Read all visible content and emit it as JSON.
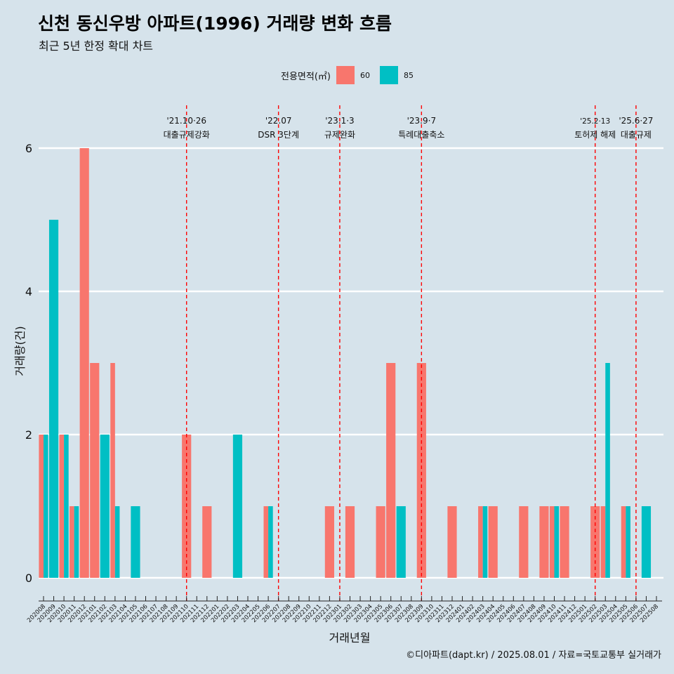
{
  "chart_data": {
    "type": "bar",
    "title": "신천 동신우방 아파트(1996) 거래량 변화 흐름",
    "subtitle": "최근 5년 한정 확대 차트",
    "xlabel": "거래년월",
    "ylabel": "거래량(건)",
    "ylim": [
      0,
      6
    ],
    "y_ticks": [
      0,
      2,
      4,
      6
    ],
    "grid": true,
    "legend": {
      "title": "전용면적(㎡)",
      "placement": "top"
    },
    "categories": [
      "202008",
      "202009",
      "202010",
      "202011",
      "202012",
      "202101",
      "202102",
      "202103",
      "202104",
      "202105",
      "202106",
      "202107",
      "202108",
      "202109",
      "202110",
      "202111",
      "202112",
      "202201",
      "202202",
      "202203",
      "202204",
      "202205",
      "202206",
      "202207",
      "202208",
      "202209",
      "202210",
      "202211",
      "202212",
      "202301",
      "202302",
      "202303",
      "202304",
      "202305",
      "202306",
      "202307",
      "202308",
      "202309",
      "202310",
      "202311",
      "202312",
      "202401",
      "202402",
      "202403",
      "202404",
      "202405",
      "202406",
      "202407",
      "202408",
      "202409",
      "202410",
      "202411",
      "202412",
      "202501",
      "202502",
      "202503",
      "202504",
      "202505",
      "202506",
      "202507",
      "202508"
    ],
    "series": [
      {
        "name": "60",
        "color": "#f8766d",
        "values": [
          2,
          0,
          2,
          1,
          6,
          3,
          0,
          3,
          0,
          0,
          0,
          0,
          0,
          0,
          2,
          0,
          1,
          0,
          0,
          0,
          0,
          0,
          1,
          0,
          0,
          0,
          0,
          0,
          1,
          0,
          1,
          0,
          0,
          1,
          3,
          0,
          0,
          3,
          0,
          0,
          1,
          0,
          0,
          1,
          1,
          0,
          0,
          1,
          0,
          1,
          1,
          1,
          0,
          0,
          1,
          1,
          0,
          1,
          0,
          0,
          0
        ]
      },
      {
        "name": "85",
        "color": "#00bfc4",
        "values": [
          2,
          5,
          2,
          1,
          0,
          0,
          2,
          1,
          0,
          1,
          0,
          0,
          0,
          0,
          0,
          0,
          0,
          0,
          0,
          2,
          0,
          0,
          1,
          0,
          0,
          0,
          0,
          0,
          0,
          0,
          0,
          0,
          0,
          0,
          0,
          1,
          0,
          0,
          0,
          0,
          0,
          0,
          0,
          1,
          0,
          0,
          0,
          0,
          0,
          0,
          1,
          0,
          0,
          0,
          0,
          3,
          0,
          1,
          0,
          1,
          0
        ]
      }
    ],
    "annotations": [
      {
        "date": "'21.10·26",
        "label": "대출규제강화",
        "category": "202110"
      },
      {
        "date": "'22.07",
        "label": "DSR 3단계",
        "category": "202207"
      },
      {
        "date": "'23.1·3",
        "label": "규제완화",
        "category": "202301"
      },
      {
        "date": "'23.9·7",
        "label": "특례대출축소",
        "category": "202309"
      },
      {
        "date": "'25.2·13",
        "label": "토허제 해제",
        "category": "202502"
      },
      {
        "date": "'25.6·27",
        "label": "대출규제",
        "category": "202506"
      }
    ]
  },
  "caption": "©디아파트(dapt.kr) / 2025.08.01 / 자료=국토교통부 실거래가"
}
